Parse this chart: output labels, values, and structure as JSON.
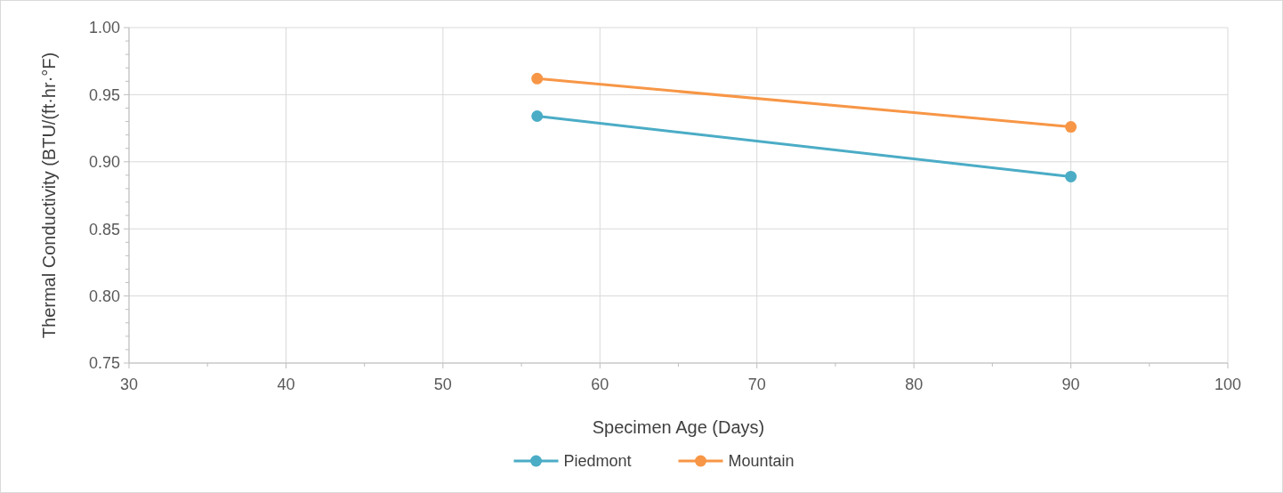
{
  "chart_data": {
    "type": "line",
    "xlabel": "Specimen Age (Days)",
    "ylabel": "Thermal Conductivity (BTU/(ft·hr·°F)",
    "x": [
      56,
      90
    ],
    "series": [
      {
        "name": "Piedmont",
        "color": "#4bacc6",
        "values": [
          0.934,
          0.889
        ]
      },
      {
        "name": "Mountain",
        "color": "#f79646",
        "values": [
          0.962,
          0.926
        ]
      }
    ],
    "xlim": [
      30,
      100
    ],
    "xticks": [
      30,
      {
        "value": 35,
        "label": null
      },
      40,
      {
        "value": 45,
        "label": null
      },
      50,
      {
        "value": 55,
        "label": null
      },
      60,
      {
        "value": 65,
        "label": null
      },
      70,
      {
        "value": 75,
        "label": null
      },
      80,
      {
        "value": 85,
        "label": null
      },
      90,
      {
        "value": 95,
        "label": null
      },
      100
    ],
    "ylim": [
      0.75,
      1.0
    ],
    "yticks": [
      {
        "value": 0.75,
        "label": "0.75"
      },
      {
        "value": 0.76,
        "label": null
      },
      {
        "value": 0.77,
        "label": null
      },
      {
        "value": 0.78,
        "label": null
      },
      {
        "value": 0.79,
        "label": null
      },
      {
        "value": 0.8,
        "label": "0.80"
      },
      {
        "value": 0.81,
        "label": null
      },
      {
        "value": 0.82,
        "label": null
      },
      {
        "value": 0.83,
        "label": null
      },
      {
        "value": 0.84,
        "label": null
      },
      {
        "value": 0.85,
        "label": "0.85"
      },
      {
        "value": 0.86,
        "label": null
      },
      {
        "value": 0.87,
        "label": null
      },
      {
        "value": 0.88,
        "label": null
      },
      {
        "value": 0.89,
        "label": null
      },
      {
        "value": 0.9,
        "label": "0.90"
      },
      {
        "value": 0.91,
        "label": null
      },
      {
        "value": 0.92,
        "label": null
      },
      {
        "value": 0.93,
        "label": null
      },
      {
        "value": 0.94,
        "label": null
      },
      {
        "value": 0.95,
        "label": "0.95"
      },
      {
        "value": 0.96,
        "label": null
      },
      {
        "value": 0.97,
        "label": null
      },
      {
        "value": 0.98,
        "label": null
      },
      {
        "value": 0.99,
        "label": null
      },
      {
        "value": 1.0,
        "label": "1.00"
      }
    ],
    "grid": true,
    "legend": "bottom",
    "marker": "circle",
    "line_style": "solid"
  }
}
